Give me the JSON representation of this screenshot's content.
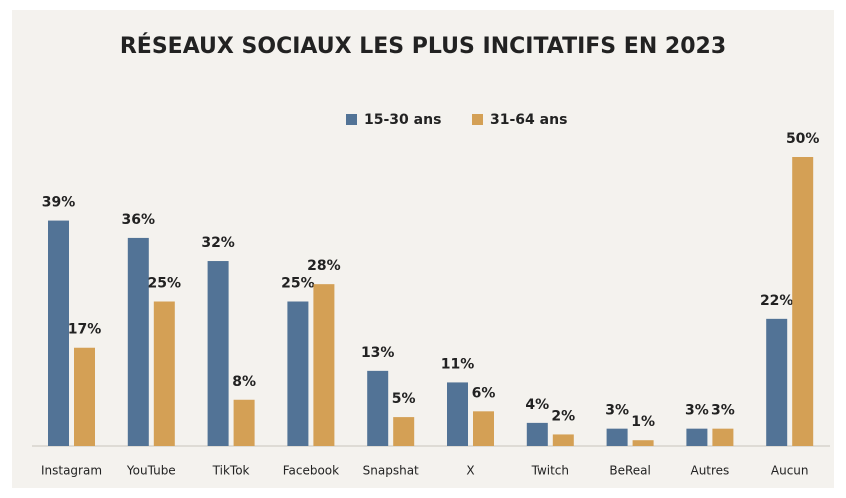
{
  "chart_data": {
    "type": "bar",
    "title": "RÉSEAUX SOCIAUX LES PLUS INCITATIFS EN 2023",
    "categories": [
      "Instagram",
      "YouTube",
      "TikTok",
      "Facebook",
      "Snapshat",
      "X",
      "Twitch",
      "BeReal",
      "Autres",
      "Aucun"
    ],
    "series": [
      {
        "name": "15-30 ans",
        "color": "#527396",
        "values": [
          39,
          36,
          32,
          25,
          13,
          11,
          4,
          3,
          3,
          22
        ],
        "value_labels": [
          "39%",
          "36%",
          "32%",
          "25%",
          "13%",
          "11%",
          "4%",
          "3%",
          "3%",
          "22%"
        ]
      },
      {
        "name": "31-64 ans",
        "color": "#d4a055",
        "values": [
          17,
          25,
          8,
          28,
          5,
          6,
          2,
          1,
          3,
          50
        ],
        "value_labels": [
          "17%",
          "25%",
          "8%",
          "28%",
          "5%",
          "6%",
          "2%",
          "1%",
          "3%",
          "50%"
        ]
      }
    ],
    "legend": "top"
  }
}
